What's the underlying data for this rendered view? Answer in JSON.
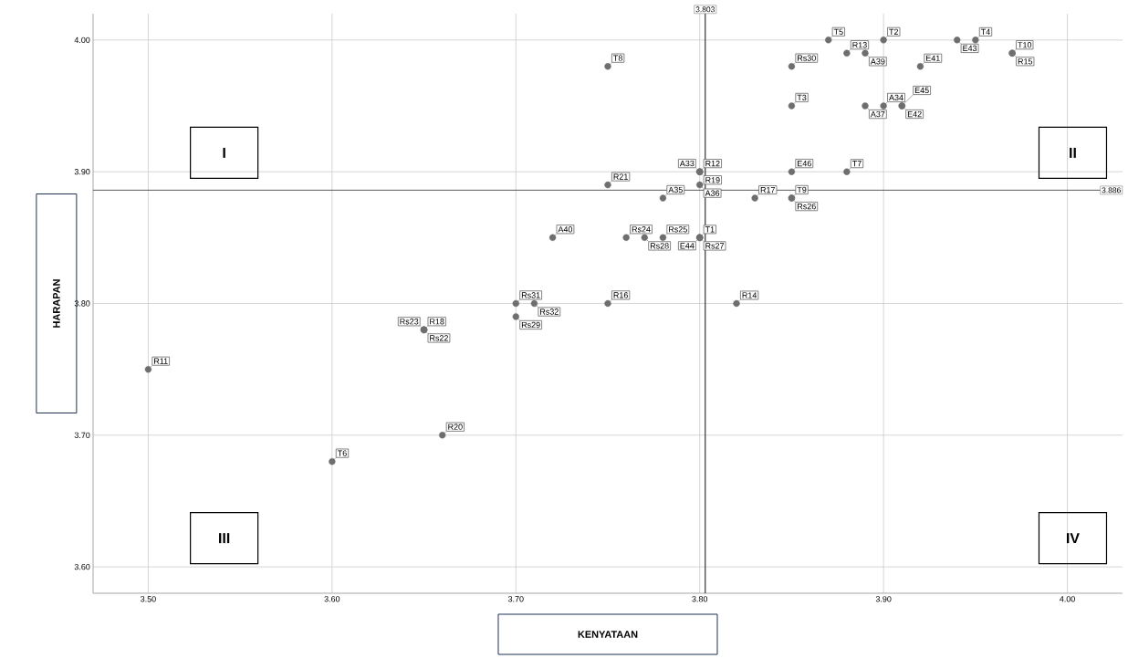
{
  "chart_data": {
    "type": "scatter",
    "xlabel": "KENYATAAN",
    "ylabel": "HARAPAN",
    "x": [
      3.8,
      3.9,
      3.85,
      3.95,
      3.87,
      3.6,
      3.88,
      3.75,
      3.85,
      3.97,
      3.5,
      3.8,
      3.88,
      3.82,
      3.97,
      3.75,
      3.83,
      3.65,
      3.8,
      3.66,
      3.75,
      3.65,
      3.65,
      3.76,
      3.78,
      3.85,
      3.8,
      3.77,
      3.7,
      3.85,
      3.7,
      3.71,
      3.8,
      3.9,
      3.78,
      3.8,
      3.89,
      3.89,
      3.72,
      3.92,
      3.91,
      3.94,
      3.8,
      3.91,
      3.85
    ],
    "values": [
      3.85,
      4.0,
      3.95,
      4.0,
      4.0,
      3.68,
      3.9,
      3.98,
      3.88,
      3.99,
      3.75,
      3.9,
      3.99,
      3.8,
      3.99,
      3.8,
      3.88,
      3.78,
      3.9,
      3.7,
      3.89,
      3.78,
      3.78,
      3.85,
      3.85,
      3.88,
      3.85,
      3.85,
      3.79,
      3.98,
      3.8,
      3.8,
      3.9,
      3.95,
      3.88,
      3.89,
      3.95,
      3.99,
      3.85,
      3.98,
      3.95,
      4.0,
      3.85,
      3.95,
      3.9
    ],
    "value_labels": [
      "T1",
      "T2",
      "T3",
      "T4",
      "T5",
      "T6",
      "T7",
      "T8",
      "T9",
      "T10",
      "R11",
      "R12",
      "R13",
      "R14",
      "R15",
      "R16",
      "R17",
      "R18",
      "R19",
      "R20",
      "R21",
      "Rs22",
      "Rs23",
      "Rs24",
      "Rs25",
      "Rs26",
      "Rs27",
      "Rs28",
      "Rs29",
      "Rs30",
      "Rs31",
      "Rs32",
      "A33",
      "A34",
      "A35",
      "A36",
      "A37",
      "A39",
      "A40",
      "E41",
      "E42",
      "E43",
      "E44",
      "E45",
      "E46"
    ],
    "color": "#6e6e6e",
    "marker": "circle",
    "xlim": [
      3.47,
      4.03
    ],
    "ylim": [
      3.58,
      4.02
    ],
    "xticks": [
      {
        "value": 3.5,
        "label": "3.50"
      },
      {
        "value": 3.6,
        "label": "3.60"
      },
      {
        "value": 3.7,
        "label": "3.70"
      },
      {
        "value": 3.8,
        "label": "3.80"
      },
      {
        "value": 3.9,
        "label": "3.90"
      },
      {
        "value": 4.0,
        "label": "4.00"
      }
    ],
    "yticks": [
      {
        "value": 3.6,
        "label": "3.60"
      },
      {
        "value": 3.7,
        "label": "3.70"
      },
      {
        "value": 3.8,
        "label": "3.80"
      },
      {
        "value": 3.9,
        "label": "3.90"
      },
      {
        "value": 4.0,
        "label": "4.00"
      }
    ],
    "grid": true,
    "ref_lines": [
      {
        "axis": "x",
        "value": 3.803,
        "label": "3.803"
      },
      {
        "axis": "y",
        "value": 3.886,
        "label": "3.886"
      }
    ],
    "annotations": [
      "I",
      "II",
      "III",
      "IV"
    ]
  }
}
